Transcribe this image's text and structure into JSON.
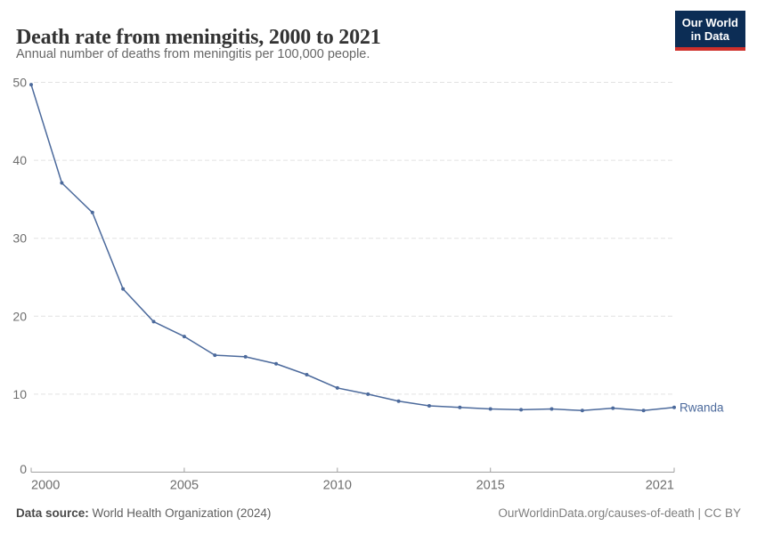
{
  "header": {
    "title": "Death rate from meningitis, 2000 to 2021",
    "subtitle": "Annual number of deaths from meningitis per 100,000 people.",
    "logo": {
      "line1": "Our World",
      "line2": "in Data"
    }
  },
  "chart_data": {
    "type": "line",
    "title": "Death rate from meningitis, 2000 to 2021",
    "xlabel": "",
    "ylabel": "",
    "xlim": [
      2000,
      2021
    ],
    "ylim": [
      0,
      50
    ],
    "x_ticks": [
      2000,
      2005,
      2010,
      2015,
      2021
    ],
    "y_ticks": [
      0,
      10,
      20,
      30,
      40,
      50
    ],
    "grid": "horizontal-dashed",
    "legend_position": "end-of-line-label",
    "series": [
      {
        "name": "Rwanda",
        "color": "#4C6A9C",
        "x": [
          2000,
          2001,
          2002,
          2003,
          2004,
          2005,
          2006,
          2007,
          2008,
          2009,
          2010,
          2011,
          2012,
          2013,
          2014,
          2015,
          2016,
          2017,
          2018,
          2019,
          2020,
          2021
        ],
        "values": [
          49.7,
          37.1,
          33.3,
          23.5,
          19.3,
          17.4,
          15.0,
          14.8,
          13.9,
          12.5,
          10.8,
          10.0,
          9.1,
          8.5,
          8.3,
          8.1,
          8.0,
          8.1,
          7.9,
          8.2,
          7.9,
          8.3
        ]
      }
    ]
  },
  "footer": {
    "source_label": "Data source:",
    "source_value": " World Health Organization (2024)",
    "link": "OurWorldinData.org/causes-of-death | CC BY"
  },
  "colors": {
    "line": "#4C6A9C",
    "grid": "#E2E2E2",
    "axis": "#A1A1A1",
    "tick_label": "#6E6E6E",
    "title": "#333333",
    "subtitle": "#666666",
    "logo_bg": "#0C2D55",
    "logo_red": "#CF302B"
  }
}
